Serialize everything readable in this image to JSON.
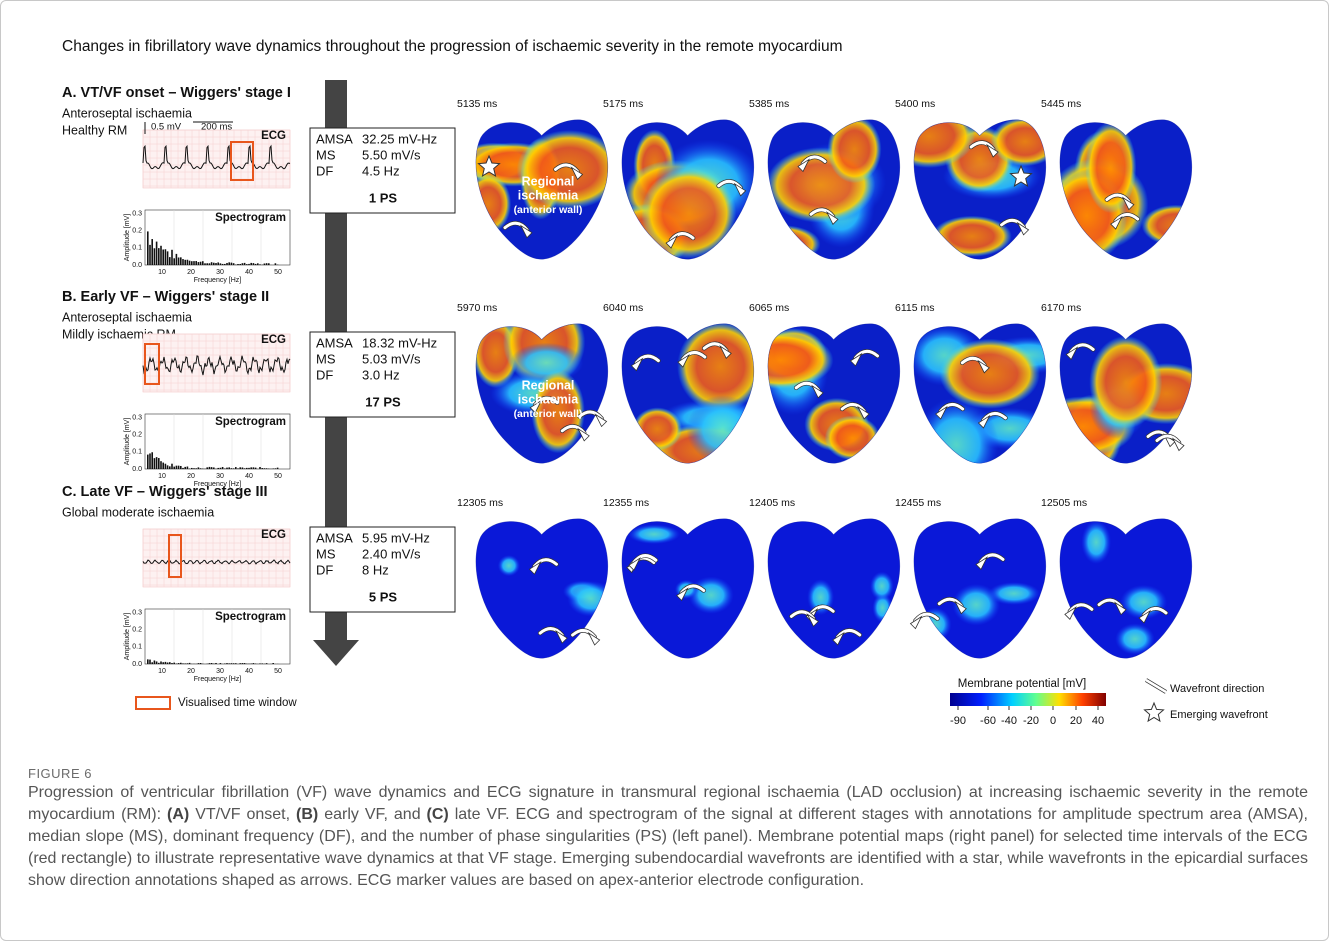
{
  "figure_title": "Changes in fibrillatory wave dynamics throughout the progression of ischaemic severity in the remote myocardium",
  "panels": [
    {
      "heading": "A. VT/VF onset – Wiggers' stage I",
      "description": [
        "Anteroseptal ischaemia",
        "Healthy RM"
      ],
      "ecg_label": "ECG",
      "ecg_scale": [
        "0.5 mV",
        "200 ms"
      ],
      "spectrogram": {
        "title": "Spectrogram",
        "y_label": "Amplitude [mV]",
        "y_ticks": [
          "0.0",
          "0.1",
          "0.2",
          "0.3"
        ],
        "x_ticks": [
          "10",
          "20",
          "30",
          "40",
          "50"
        ],
        "x_label": "Frequency [Hz]"
      },
      "metrics": [
        {
          "name": "AMSA",
          "value": "32.25 mV-Hz"
        },
        {
          "name": "MS",
          "value": "5.50 mV/s"
        },
        {
          "name": "DF",
          "value": "4.5 Hz"
        }
      ],
      "ps": "1 PS",
      "frames": [
        "5135 ms",
        "5175 ms",
        "5385 ms",
        "5400 ms",
        "5445 ms"
      ],
      "annotation": [
        "Regional",
        "ischaemia",
        "(anterior wall)"
      ]
    },
    {
      "heading": "B. Early VF – Wiggers' stage II",
      "description": [
        "Anteroseptal ischaemia",
        "Mildly ischaemic RM"
      ],
      "ecg_label": "ECG",
      "spectrogram": {
        "title": "Spectrogram",
        "y_label": "Amplitude [mV]",
        "y_ticks": [
          "0.0",
          "0.1",
          "0.2",
          "0.3"
        ],
        "x_ticks": [
          "10",
          "20",
          "30",
          "40",
          "50"
        ],
        "x_label": "Frequency [Hz]"
      },
      "metrics": [
        {
          "name": "AMSA",
          "value": "18.32 mV-Hz"
        },
        {
          "name": "MS",
          "value": "5.03 mV/s"
        },
        {
          "name": "DF",
          "value": "3.0 Hz"
        }
      ],
      "ps": "17 PS",
      "frames": [
        "5970 ms",
        "6040 ms",
        "6065 ms",
        "6115 ms",
        "6170 ms"
      ],
      "annotation": [
        "Regional",
        "ischaemia",
        "(anterior wall)"
      ]
    },
    {
      "heading": "C. Late VF – Wiggers' stage III",
      "description": [
        "Global moderate ischaemia"
      ],
      "ecg_label": "ECG",
      "spectrogram": {
        "title": "Spectrogram",
        "y_label": "Amplitude [mV]",
        "y_ticks": [
          "0.0",
          "0.1",
          "0.2",
          "0.3"
        ],
        "x_ticks": [
          "10",
          "20",
          "30",
          "40",
          "50"
        ],
        "x_label": "Frequency [Hz]"
      },
      "metrics": [
        {
          "name": "AMSA",
          "value": "5.95 mV-Hz"
        },
        {
          "name": "MS",
          "value": "2.40 mV/s"
        },
        {
          "name": "DF",
          "value": "8 Hz"
        }
      ],
      "ps": "5 PS",
      "frames": [
        "12305 ms",
        "12355 ms",
        "12405 ms",
        "12455 ms",
        "12505 ms"
      ]
    }
  ],
  "legend": {
    "time_window": "Visualised time window",
    "colorbar_title": "Membrane potential [mV]",
    "colorbar_ticks": [
      "-90",
      "-60",
      "-40",
      "-20",
      "0",
      "20",
      "40"
    ],
    "wavefront_direction": "Wavefront direction",
    "emerging_wavefront": "Emerging wavefront"
  },
  "caption": {
    "label": "FIGURE 6",
    "parts": [
      "Progression of ventricular fibrillation (VF) wave dynamics and ECG signature in transmural regional ischaemia (LAD occlusion) at increasing ischaemic severity in the remote myocardium (RM): ",
      "(A)",
      " VT/VF onset, ",
      "(B)",
      " early VF, and ",
      "(C)",
      " late VF. ECG and spectrogram of the signal at different stages with annotations for amplitude spectrum area (AMSA), median slope (MS), dominant frequency (DF), and the number of phase singularities (PS) (left panel). Membrane potential maps (right panel) for selected time intervals of the ECG (red rectangle) to illustrate representative wave dynamics at that VF stage. Emerging subendocardial wavefronts are identified with a star, while wavefronts in the epicardial surfaces show direction annotations shaped as arrows. ECG marker values are based on apex-anterior electrode configuration."
    ]
  }
}
